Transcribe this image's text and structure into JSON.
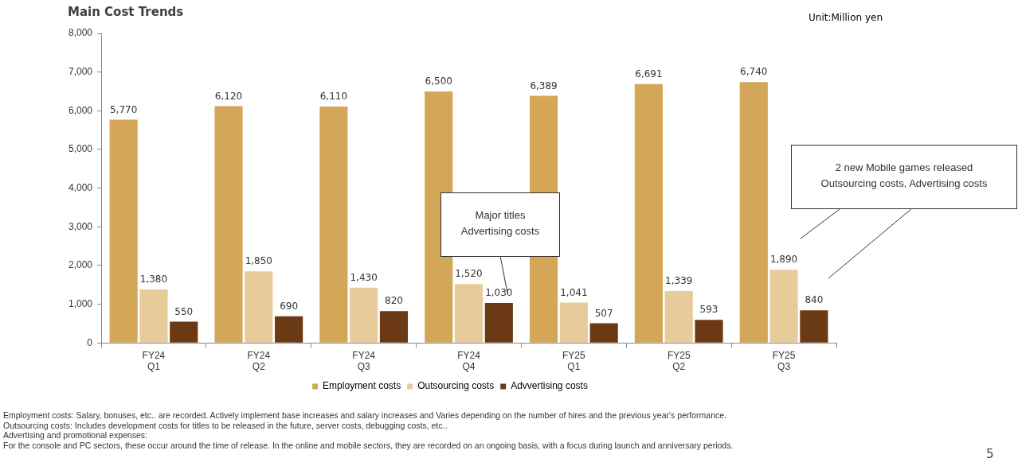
{
  "chart_data": {
    "type": "bar",
    "title": "Main Cost Trends",
    "categories": [
      "FY24\nQ1",
      "FY24\nQ2",
      "FY24\nQ3",
      "FY24\nQ4",
      "FY25\nQ1",
      "FY25\nQ2",
      "FY25\nQ3"
    ],
    "series": [
      {
        "name": "Employment costs",
        "color": "#d4a657",
        "values": [
          5770,
          6120,
          6110,
          6500,
          6389,
          6691,
          6740
        ],
        "value_labels": [
          "5,770",
          "6,120",
          "6,110",
          "6,500",
          "6,389",
          "6,691",
          "6,740"
        ]
      },
      {
        "name": "Outsourcing costs",
        "color": "#e8cb9a",
        "values": [
          1380,
          1850,
          1430,
          1520,
          1041,
          1339,
          1890
        ],
        "value_labels": [
          "1,380",
          "1,850",
          "1,430",
          "1,520",
          "1,041",
          "1,339",
          "1,890"
        ]
      },
      {
        "name": "Advvertising costs",
        "color": "#6b3a14",
        "values": [
          550,
          690,
          820,
          1030,
          507,
          593,
          840
        ],
        "value_labels": [
          "550",
          "690",
          "820",
          "1,030",
          "507",
          "593",
          "840"
        ]
      }
    ],
    "ylim": [
      0,
      8000
    ],
    "yticks": [
      0,
      {
        "value": 1000,
        "label": "1,000"
      },
      {
        "value": 2000,
        "label": "2,000"
      },
      {
        "value": 3000,
        "label": "3,000"
      },
      {
        "value": 4000,
        "label": "4,000"
      },
      {
        "value": 5000,
        "label": "5,000"
      },
      {
        "value": 6000,
        "label": "6,000"
      },
      {
        "value": 7000,
        "label": "7,000"
      },
      {
        "value": 8000,
        "label": "8,000"
      }
    ],
    "grid": false,
    "legend": "bottom",
    "annotations": [
      "Major titles\nAdvertising costs",
      "2 new Mobile games released\nOutsourcing costs, Advertising costs",
      "Unit:Million yen",
      "Employment costs: Salary, bonuses, etc.. are recorded. Actively implement base increases and salary increases  and Varies depending on the number of hires and the previous year's performance.",
      "Outsourcing costs: Includes development costs for titles to be released in the future, server costs, debugging costs, etc..",
      "Advertising and promotional expenses:",
      "For the console and PC sectors, these occur around the time of release. In the online and mobile sectors, they are recorded on an ongoing basis, with a focus during launch and anniversary periods.",
      "5"
    ]
  }
}
